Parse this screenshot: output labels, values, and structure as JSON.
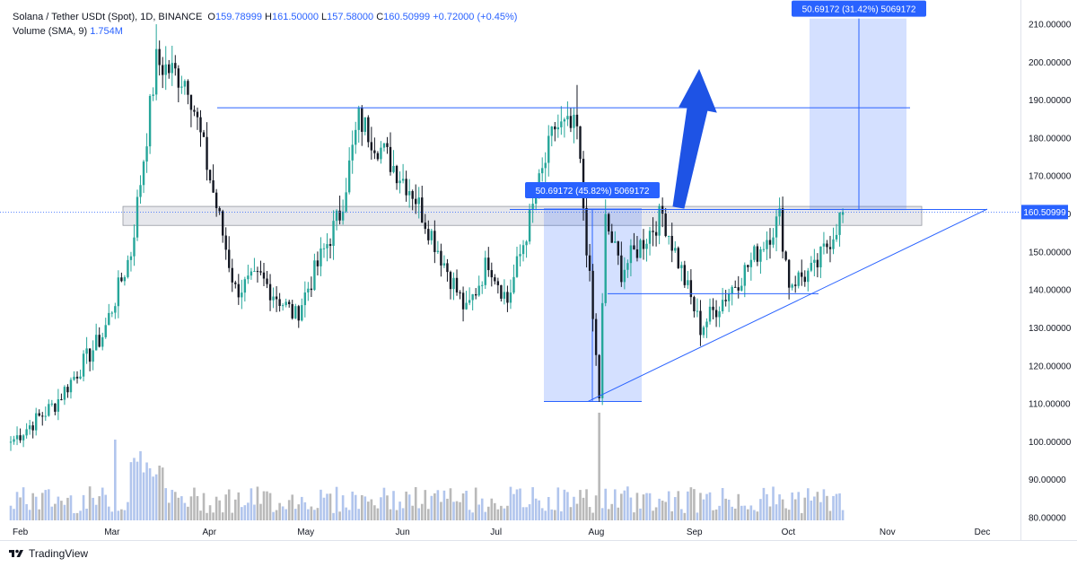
{
  "legend": {
    "symbol": "Solana / Tether USDt (Spot), 1D, BINANCE",
    "o_label": "O",
    "o": "159.78999",
    "h_label": "H",
    "h": "161.50000",
    "l_label": "L",
    "l": "157.58000",
    "c_label": "C",
    "c": "160.50999",
    "change": "+0.72000 (+0.45%)",
    "volume_label": "Volume (SMA, 9)",
    "volume_value": "1.754M"
  },
  "brand": {
    "name": "TradingView"
  },
  "colors": {
    "up": "#26a69a",
    "down": "#131722",
    "drawing": "#2962ff",
    "zone": "#bcc3d6",
    "accent": "#2962ff"
  },
  "chart_data": {
    "type": "candlestick",
    "title": "Solana / Tether USDt (Spot), 1D, BINANCE",
    "ylim": [
      80,
      210
    ],
    "y_ticks": [
      "210.00000",
      "200.00000",
      "190.00000",
      "180.00000",
      "170.00000",
      "160.00000",
      "150.00000",
      "140.00000",
      "130.00000",
      "120.00000",
      "110.00000",
      "100.00000",
      "90.00000",
      "80.00000"
    ],
    "y_tick_values": [
      210,
      200,
      190,
      180,
      170,
      160,
      150,
      140,
      130,
      120,
      110,
      100,
      90,
      80
    ],
    "x_ticks": [
      "Feb",
      "Mar",
      "Apr",
      "May",
      "Jun",
      "Jul",
      "Aug",
      "Sep",
      "Oct",
      "Nov",
      "Dec"
    ],
    "x_tick_days": [
      0,
      29,
      60,
      90,
      121,
      151,
      182,
      213,
      243,
      274,
      304
    ],
    "start_date": "2024-02-01",
    "last_price": "160.50999",
    "last_price_value": 160.51,
    "key_points": [
      {
        "date": "2024-02-01",
        "close": 100
      },
      {
        "date": "2024-02-15",
        "close": 110
      },
      {
        "date": "2024-03-01",
        "close": 128
      },
      {
        "date": "2024-03-10",
        "close": 150
      },
      {
        "date": "2024-03-18",
        "close": 200
      },
      {
        "date": "2024-03-28",
        "close": 195
      },
      {
        "date": "2024-04-12",
        "close": 140
      },
      {
        "date": "2024-04-20",
        "close": 143
      },
      {
        "date": "2024-05-01",
        "close": 133
      },
      {
        "date": "2024-05-15",
        "close": 160
      },
      {
        "date": "2024-05-21",
        "close": 185
      },
      {
        "date": "2024-06-07",
        "close": 166
      },
      {
        "date": "2024-06-24",
        "close": 134
      },
      {
        "date": "2024-07-01",
        "close": 148
      },
      {
        "date": "2024-07-07",
        "close": 137
      },
      {
        "date": "2024-07-22",
        "close": 183
      },
      {
        "date": "2024-07-29",
        "close": 182
      },
      {
        "date": "2024-08-05",
        "close": 112
      },
      {
        "date": "2024-08-07",
        "close": 158
      },
      {
        "date": "2024-08-12",
        "close": 145
      },
      {
        "date": "2024-08-25",
        "close": 160
      },
      {
        "date": "2024-09-06",
        "close": 130
      },
      {
        "date": "2024-09-20",
        "close": 145
      },
      {
        "date": "2024-10-01",
        "close": 159
      },
      {
        "date": "2024-10-04",
        "close": 142
      },
      {
        "date": "2024-10-12",
        "close": 145
      },
      {
        "date": "2024-10-21",
        "close": 160.51
      }
    ],
    "annotations": {
      "resistance_level": 188,
      "support_zone": [
        157,
        162
      ],
      "support_level": 139,
      "measure_1": {
        "label": "50.69172 (45.82%) 5069172",
        "from": 110.6,
        "to": 161.3
      },
      "measure_2": {
        "label": "50.69172 (31.42%) 5069172",
        "from": 161,
        "to": 211.5
      },
      "arrow": "up"
    }
  }
}
